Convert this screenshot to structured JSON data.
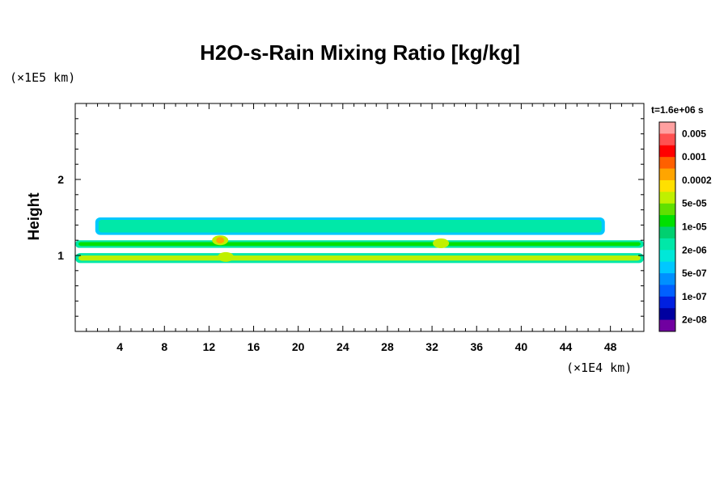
{
  "chart_data": {
    "type": "heatmap",
    "title": "H2O-s-Rain Mixing Ratio [kg/kg]",
    "xlabel": "",
    "ylabel": "Height",
    "x_unit": "(×1E4 km)",
    "y_unit": "(×1E5 km)",
    "time_label": "t=1.6e+06 s",
    "xlim": [
      0,
      51
    ],
    "ylim": [
      0,
      3
    ],
    "x_ticks": [
      4,
      8,
      12,
      16,
      20,
      24,
      28,
      32,
      36,
      40,
      44,
      48
    ],
    "y_ticks": [
      1,
      2
    ],
    "grid": false,
    "colorbar": {
      "placement": "right",
      "levels": [
        {
          "color": "#ffa0a0",
          "label": "0.005"
        },
        {
          "color": "#ff5050",
          "label": ""
        },
        {
          "color": "#ff0000",
          "label": "0.001"
        },
        {
          "color": "#ff6000",
          "label": ""
        },
        {
          "color": "#ffa500",
          "label": "0.0002"
        },
        {
          "color": "#ffe000",
          "label": ""
        },
        {
          "color": "#c0f000",
          "label": "5e-05"
        },
        {
          "color": "#60e000",
          "label": ""
        },
        {
          "color": "#00e000",
          "label": "1e-05"
        },
        {
          "color": "#00d070",
          "label": ""
        },
        {
          "color": "#00e8a8",
          "label": "2e-06"
        },
        {
          "color": "#00e8d8",
          "label": ""
        },
        {
          "color": "#00c8ff",
          "label": "5e-07"
        },
        {
          "color": "#0090ff",
          "label": ""
        },
        {
          "color": "#0060ff",
          "label": "1e-07"
        },
        {
          "color": "#0020e0",
          "label": ""
        },
        {
          "color": "#0000a0",
          "label": "2e-08"
        },
        {
          "color": "#7000a0",
          "label": ""
        }
      ]
    },
    "layers": [
      {
        "name": "upper",
        "x_range": [
          1.8,
          47.5
        ],
        "y_range": [
          1.27,
          1.5
        ],
        "dominant": "2e-06",
        "edge": "5e-07"
      },
      {
        "name": "middle",
        "x_range": [
          0,
          51
        ],
        "y_range": [
          1.1,
          1.2
        ],
        "dominant": "1e-05",
        "edge": "2e-06"
      },
      {
        "name": "lower",
        "x_range": [
          0,
          51
        ],
        "y_range": [
          0.9,
          1.03
        ],
        "dominant": "5e-05",
        "edge": "2e-06"
      }
    ],
    "peaks": [
      {
        "x": 13,
        "y": 1.2,
        "value_label": "0.0002"
      },
      {
        "x": 13.5,
        "y": 0.98,
        "value_label": "5e-05"
      },
      {
        "x": 32.8,
        "y": 1.16,
        "value_label": "5e-05"
      }
    ]
  }
}
